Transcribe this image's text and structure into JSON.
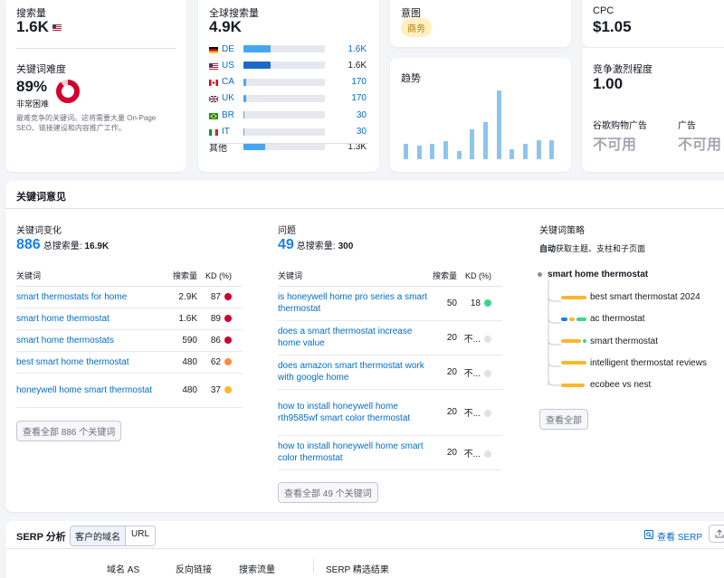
{
  "volume": {
    "label": "搜索量",
    "value": "1.6K",
    "flag": "US"
  },
  "kd": {
    "label": "关键词难度",
    "value": "89%",
    "level": "非常困难",
    "percent": 89,
    "desc": "最难竞争的关键词。这将需要大量 On-Page SEO、链接建设和内容推广工作。"
  },
  "global": {
    "label": "全球搜索量",
    "value": "4.9K",
    "rows": [
      {
        "code": "DE",
        "value": "1.6K",
        "fraction": 0.33,
        "color": "#45a6f3",
        "link": true
      },
      {
        "code": "US",
        "value": "1.6K",
        "fraction": 0.33,
        "color": "#1b6ac7",
        "link": false
      },
      {
        "code": "CA",
        "value": "170",
        "fraction": 0.035,
        "color": "#45a6f3",
        "link": true
      },
      {
        "code": "UK",
        "value": "170",
        "fraction": 0.035,
        "color": "#45a6f3",
        "link": true
      },
      {
        "code": "BR",
        "value": "30",
        "fraction": 0.01,
        "color": "#45a6f3",
        "link": true
      },
      {
        "code": "IT",
        "value": "30",
        "fraction": 0.01,
        "color": "#45a6f3",
        "link": true
      }
    ],
    "other": {
      "label": "其他",
      "value": "1.3K",
      "fraction": 0.27
    }
  },
  "intent": {
    "label": "意图",
    "badge": "商务"
  },
  "trend": {
    "label": "趋势",
    "values": [
      0.22,
      0.2,
      0.22,
      0.26,
      0.12,
      0.44,
      0.54,
      1.0,
      0.15,
      0.22,
      0.28,
      0.28
    ]
  },
  "cpc": {
    "label": "CPC",
    "value": "$1.05"
  },
  "competition": {
    "label": "竞争激烈程度",
    "value": "1.00"
  },
  "ads": {
    "shopping_label": "谷歌购物广告",
    "shopping_value": "不可用",
    "ads_label": "广告",
    "ads_value": "不可用"
  },
  "ideas": {
    "title": "关键词意见",
    "variations": {
      "title": "关键词变化",
      "count": "886",
      "total_label": "总搜索量:",
      "total": "16.9K",
      "col_kw": "关键词",
      "col_vol": "搜索量",
      "col_kd": "KD (%)",
      "rows": [
        {
          "kw": "smart thermostats for home",
          "vol": "2.9K",
          "kd": "87",
          "color": "#d1002f"
        },
        {
          "kw": "smart home thermostat",
          "vol": "1.6K",
          "kd": "89",
          "color": "#d1002f"
        },
        {
          "kw": "smart home thermostats",
          "vol": "590",
          "kd": "86",
          "color": "#d1002f"
        },
        {
          "kw": "best smart home thermostat",
          "vol": "480",
          "kd": "62",
          "color": "#ff8c43"
        },
        {
          "kw": "honeywell home smart thermostat",
          "vol": "480",
          "kd": "37",
          "color": "#fcb72b"
        }
      ],
      "view_all": "查看全部 886 个关键词"
    },
    "questions": {
      "title": "问题",
      "count": "49",
      "total_label": "总搜索量:",
      "total": "300",
      "col_kw": "关键词",
      "col_vol": "搜索量",
      "col_kd": "KD (%)",
      "rows": [
        {
          "kw": "is honeywell home pro series a smart thermostat",
          "vol": "50",
          "kd": "18",
          "color": "#3cd68c"
        },
        {
          "kw": "does a smart thermostat increase home value",
          "vol": "20",
          "kd": "不...",
          "color": "#e0e1e9"
        },
        {
          "kw": "does amazon smart thermostat work with google home",
          "vol": "20",
          "kd": "不...",
          "color": "#e0e1e9"
        },
        {
          "kw": "how to install honeywell home rth9585wf smart color thermostat",
          "vol": "20",
          "kd": "不...",
          "color": "#e0e1e9"
        },
        {
          "kw": "how to install honeywell home smart color thermostat",
          "vol": "20",
          "kd": "不...",
          "color": "#e0e1e9"
        }
      ],
      "view_all": "查看全部 49 个关键词"
    },
    "strategy": {
      "title": "关键词策略",
      "subtitle_bold": "自动",
      "subtitle_rest": "获取主题、支柱和子页面",
      "root": "smart home thermostat",
      "items": [
        "best smart thermostat 2024",
        "ac thermostat",
        "smart thermostat",
        "intelligent thermostat reviews",
        "ecobee vs nest"
      ],
      "view_all": "查看全部"
    }
  },
  "serp": {
    "title": "SERP 分析",
    "tab1": "客户的域名",
    "tab2": "URL",
    "view": "查看 SERP",
    "cols": [
      "域名 AS",
      "反向链接",
      "搜索流量",
      "SERP 精选结果"
    ]
  }
}
